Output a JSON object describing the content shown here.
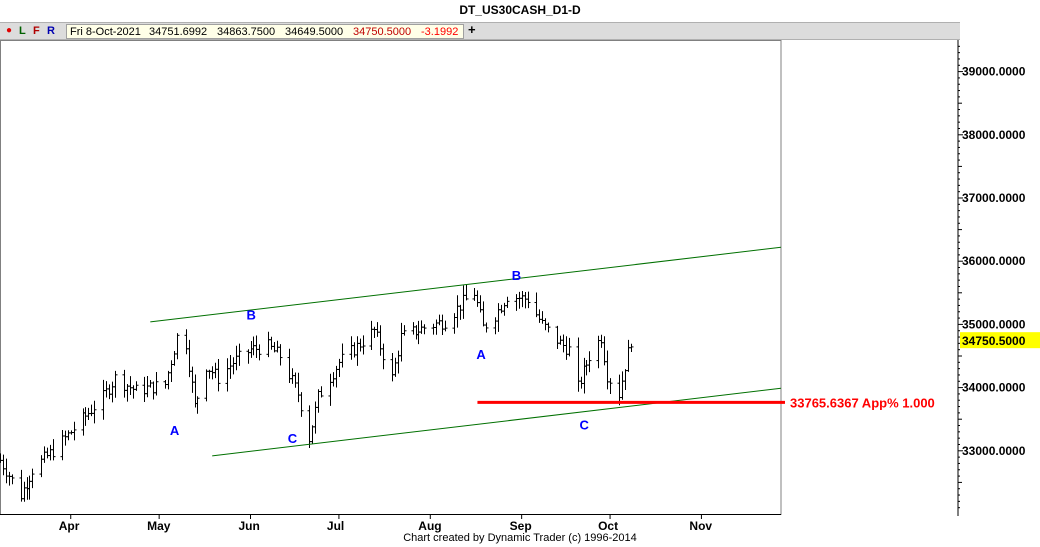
{
  "window": {
    "title": "DT_US30CASH_D1-D"
  },
  "toolbar": {
    "dot_icon": "red-dot-icon",
    "btn_l": "L",
    "btn_f": "F",
    "btn_r": "R",
    "date": "Fri 8-Oct-2021",
    "open": "34751.6992",
    "high": "34863.7500",
    "low": "34649.5000",
    "close": "34750.5000",
    "change": "-3.1992",
    "plus_icon": "crosshair-plus-icon"
  },
  "colors": {
    "bar": "#000000",
    "channel": "#007000",
    "level": "#ff0000",
    "wave_label": "#0000ff",
    "price_tag": "#ffff00",
    "change_text": "#ff0000",
    "close_text": "#c00000"
  },
  "footer": {
    "text": "Chart created by Dynamic Trader  (c) 1996-2014"
  },
  "chart_data": {
    "type": "ohlc-bar",
    "title": "DT_US30CASH_D1-D",
    "ylim": [
      32000,
      39500
    ],
    "y_ticks": [
      "39000.0000",
      "38000.0000",
      "37000.0000",
      "36000.0000",
      "35000.0000",
      "34000.0000",
      "33000.0000"
    ],
    "y_tick_values": [
      39000,
      38000,
      37000,
      36000,
      35000,
      34000,
      33000
    ],
    "x_ticks": [
      "Apr",
      "May",
      "Jun",
      "Jul",
      "Aug",
      "Sep",
      "Oct",
      "Nov"
    ],
    "x_tick_dates": [
      "2021-04-01",
      "2021-05-01",
      "2021-06-01",
      "2021-07-01",
      "2021-08-01",
      "2021-09-01",
      "2021-10-01",
      "2021-11-01"
    ],
    "x_range": [
      "2021-03-08",
      "2021-11-28"
    ],
    "last_price": "34750.5000",
    "last_price_value": 34750.5,
    "level": {
      "value": 33765.6367,
      "label": "33765.6367 App% 1.000",
      "start": "2021-08-17",
      "end": "2021-11-28"
    },
    "channel_upper": {
      "start": [
        "2021-04-28",
        35040
      ],
      "end": [
        "2021-11-28",
        36220
      ]
    },
    "channel_lower": {
      "start": [
        "2021-05-19",
        32920
      ],
      "end": [
        "2021-11-28",
        33990
      ]
    },
    "wave_labels": [
      {
        "text": "A",
        "date": "2021-05-06",
        "value": 33250
      },
      {
        "text": "B",
        "date": "2021-06-01",
        "value": 35080
      },
      {
        "text": "C",
        "date": "2021-06-15",
        "value": 33120
      },
      {
        "text": "A",
        "date": "2021-08-18",
        "value": 34450
      },
      {
        "text": "B",
        "date": "2021-08-30",
        "value": 35700
      },
      {
        "text": "C",
        "date": "2021-09-22",
        "value": 33340
      }
    ],
    "key_points": [
      [
        "2021-03-08",
        32850
      ],
      [
        "2021-03-15",
        32300
      ],
      [
        "2021-03-19",
        32700
      ],
      [
        "2021-03-26",
        33000
      ],
      [
        "2021-04-06",
        33550
      ],
      [
        "2021-04-12",
        33850
      ],
      [
        "2021-04-16",
        34150
      ],
      [
        "2021-04-23",
        33950
      ],
      [
        "2021-05-03",
        34050
      ],
      [
        "2021-05-07",
        34800
      ],
      [
        "2021-05-10",
        34700
      ],
      [
        "2021-05-13",
        33700
      ],
      [
        "2021-05-17",
        34350
      ],
      [
        "2021-05-21",
        34150
      ],
      [
        "2021-05-26",
        34400
      ],
      [
        "2021-06-01",
        34600
      ],
      [
        "2021-06-07",
        34650
      ],
      [
        "2021-06-11",
        34500
      ],
      [
        "2021-06-17",
        33900
      ],
      [
        "2021-06-21",
        33200
      ],
      [
        "2021-06-24",
        33850
      ],
      [
        "2021-07-01",
        34400
      ],
      [
        "2021-07-07",
        34650
      ],
      [
        "2021-07-13",
        34900
      ],
      [
        "2021-07-19",
        34150
      ],
      [
        "2021-07-22",
        34800
      ],
      [
        "2021-07-30",
        34950
      ],
      [
        "2021-08-06",
        35050
      ],
      [
        "2021-08-12",
        35350
      ],
      [
        "2021-08-16",
        35500
      ],
      [
        "2021-08-19",
        34950
      ],
      [
        "2021-08-23",
        35150
      ],
      [
        "2021-08-27",
        35450
      ],
      [
        "2021-09-03",
        35400
      ],
      [
        "2021-09-08",
        35000
      ],
      [
        "2021-09-14",
        34700
      ],
      [
        "2021-09-17",
        34600
      ],
      [
        "2021-09-20",
        34000
      ],
      [
        "2021-09-24",
        34500
      ],
      [
        "2021-09-28",
        34800
      ],
      [
        "2021-09-30",
        34200
      ],
      [
        "2021-10-04",
        33900
      ],
      [
        "2021-10-06",
        34350
      ],
      [
        "2021-10-08",
        34750
      ]
    ]
  }
}
